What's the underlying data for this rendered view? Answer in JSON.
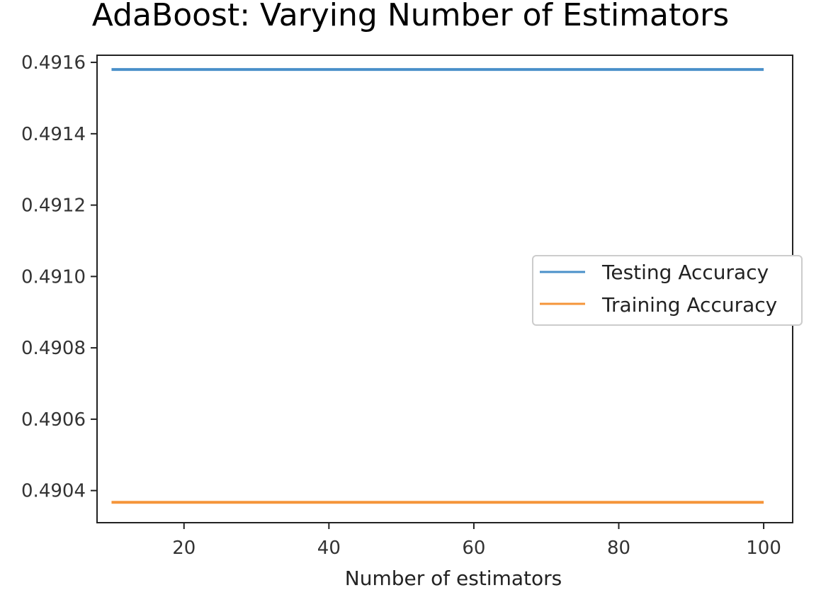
{
  "title": "AdaBoost: Varying Number of Estimators",
  "chart_data": {
    "type": "line",
    "xlabel": "Number of estimators",
    "ylabel": "",
    "x": [
      10,
      100
    ],
    "xlim": [
      8,
      104
    ],
    "ylim": [
      0.49031,
      0.49162
    ],
    "xticks": [
      20,
      40,
      60,
      80,
      100
    ],
    "xtick_labels": [
      "20",
      "40",
      "60",
      "80",
      "100"
    ],
    "yticks": [
      0.4904,
      0.4906,
      0.4908,
      0.491,
      0.4912,
      0.4914,
      0.4916
    ],
    "ytick_labels": [
      "0.4904",
      "0.4906",
      "0.4908",
      "0.4910",
      "0.4912",
      "0.4914",
      "0.4916"
    ],
    "series": [
      {
        "name": "Testing Accuracy",
        "color": "#4a90c9",
        "values": [
          0.49158,
          0.49158
        ]
      },
      {
        "name": "Training Accuracy",
        "color": "#f5953a",
        "values": [
          0.490367,
          0.490367
        ]
      }
    ],
    "grid": false,
    "legend_position": "center-right"
  }
}
